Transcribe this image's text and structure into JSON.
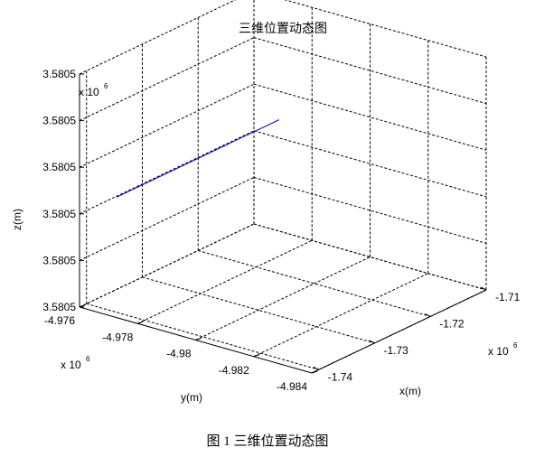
{
  "chart_data": {
    "type": "line",
    "projection": "3d",
    "title": "三维位置动态图",
    "xlabel": "x(m)",
    "ylabel": "y(m)",
    "zlabel": "z(m)",
    "x_exponent_label": "x 10",
    "x_exponent_power": "6",
    "y_exponent_label": "x 10",
    "y_exponent_power": "6",
    "z_exponent_label": "x 10",
    "z_exponent_power": "6",
    "x_ticks": [
      "-1.74",
      "-1.73",
      "-1.72",
      "-1.71"
    ],
    "y_ticks": [
      "-4.976",
      "-4.978",
      "-4.98",
      "-4.982",
      "-4.984"
    ],
    "z_ticks": [
      "3.5805",
      "3.5805",
      "3.5805",
      "3.5805",
      "3.5805",
      "3.5805"
    ],
    "grid": true,
    "box": true,
    "series": [
      {
        "color": "#0000cc",
        "note": "",
        "x": [
          -1.7395,
          -1.7108
        ],
        "y": [
          -4.9771,
          -4.9771
        ],
        "z": [
          3.5805,
          3.5805
        ]
      }
    ]
  },
  "caption": "图 1  三维位置动态图"
}
